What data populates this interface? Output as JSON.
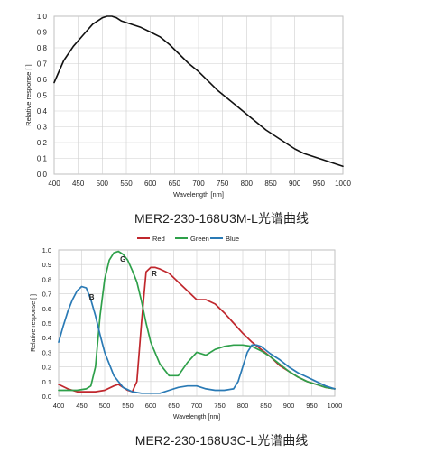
{
  "chart_data": [
    {
      "type": "line",
      "title": "MER2-230-168U3M-L光谱曲线",
      "xlabel": "Wavelength [nm]",
      "ylabel": "Relative response [ ]",
      "xlim": [
        400,
        1000
      ],
      "ylim": [
        0,
        1
      ],
      "xticks": [
        400,
        450,
        500,
        550,
        600,
        650,
        700,
        750,
        800,
        850,
        900,
        950,
        1000
      ],
      "yticks": [
        0,
        0.1,
        0.2,
        0.3,
        0.4,
        0.5,
        0.6,
        0.7,
        0.8,
        0.9,
        1.0
      ],
      "grid": true,
      "series": [
        {
          "name": "",
          "color": "#111111",
          "x": [
            400,
            420,
            440,
            460,
            480,
            500,
            510,
            520,
            530,
            540,
            550,
            560,
            580,
            600,
            620,
            640,
            660,
            680,
            700,
            720,
            740,
            760,
            780,
            800,
            820,
            840,
            860,
            880,
            900,
            920,
            940,
            960,
            980,
            1000
          ],
          "y": [
            0.58,
            0.72,
            0.81,
            0.88,
            0.95,
            0.99,
            1.0,
            1.0,
            0.99,
            0.97,
            0.96,
            0.95,
            0.93,
            0.9,
            0.87,
            0.82,
            0.76,
            0.7,
            0.65,
            0.59,
            0.53,
            0.48,
            0.43,
            0.38,
            0.33,
            0.28,
            0.24,
            0.2,
            0.16,
            0.13,
            0.11,
            0.09,
            0.07,
            0.05
          ]
        }
      ]
    },
    {
      "type": "line",
      "title": "MER2-230-168U3C-L光谱曲线",
      "xlabel": "Wavelength [nm]",
      "ylabel": "Relative response [ ]",
      "xlim": [
        400,
        1000
      ],
      "ylim": [
        0,
        1
      ],
      "xticks": [
        400,
        450,
        500,
        550,
        600,
        650,
        700,
        750,
        800,
        850,
        900,
        950,
        1000
      ],
      "yticks": [
        0,
        0.1,
        0.2,
        0.3,
        0.4,
        0.5,
        0.6,
        0.7,
        0.8,
        0.9,
        1.0
      ],
      "grid": true,
      "legend": "top",
      "series": [
        {
          "name": "Red",
          "label": "R",
          "color": "#c0272d",
          "x": [
            400,
            420,
            440,
            460,
            480,
            500,
            520,
            530,
            540,
            550,
            560,
            570,
            580,
            590,
            600,
            610,
            620,
            640,
            660,
            680,
            700,
            720,
            740,
            760,
            780,
            800,
            820,
            840,
            860,
            880,
            900,
            920,
            940,
            960,
            980,
            1000
          ],
          "y": [
            0.08,
            0.05,
            0.03,
            0.03,
            0.03,
            0.04,
            0.07,
            0.08,
            0.06,
            0.04,
            0.03,
            0.1,
            0.5,
            0.85,
            0.88,
            0.88,
            0.87,
            0.84,
            0.78,
            0.72,
            0.66,
            0.66,
            0.63,
            0.57,
            0.5,
            0.43,
            0.37,
            0.32,
            0.27,
            0.21,
            0.17,
            0.13,
            0.1,
            0.08,
            0.06,
            0.05
          ]
        },
        {
          "name": "Green",
          "label": "G",
          "color": "#2ea04a",
          "x": [
            400,
            420,
            440,
            460,
            470,
            480,
            490,
            500,
            510,
            520,
            530,
            540,
            550,
            560,
            570,
            580,
            590,
            600,
            620,
            640,
            660,
            680,
            700,
            720,
            740,
            760,
            780,
            800,
            820,
            840,
            860,
            880,
            900,
            920,
            940,
            960,
            980,
            1000
          ],
          "y": [
            0.04,
            0.04,
            0.04,
            0.05,
            0.07,
            0.2,
            0.55,
            0.8,
            0.93,
            0.98,
            0.99,
            0.97,
            0.93,
            0.86,
            0.78,
            0.65,
            0.5,
            0.37,
            0.22,
            0.14,
            0.14,
            0.23,
            0.3,
            0.28,
            0.32,
            0.34,
            0.35,
            0.35,
            0.34,
            0.31,
            0.27,
            0.22,
            0.17,
            0.13,
            0.1,
            0.08,
            0.06,
            0.05
          ]
        },
        {
          "name": "Blue",
          "label": "B",
          "color": "#2a7ab5",
          "x": [
            400,
            410,
            420,
            430,
            440,
            450,
            460,
            470,
            480,
            490,
            500,
            520,
            540,
            560,
            580,
            600,
            620,
            640,
            660,
            680,
            700,
            720,
            740,
            760,
            780,
            790,
            800,
            810,
            820,
            830,
            840,
            860,
            880,
            900,
            920,
            940,
            960,
            980,
            1000
          ],
          "y": [
            0.37,
            0.48,
            0.58,
            0.66,
            0.72,
            0.75,
            0.74,
            0.66,
            0.55,
            0.42,
            0.3,
            0.14,
            0.06,
            0.03,
            0.02,
            0.02,
            0.02,
            0.04,
            0.06,
            0.07,
            0.07,
            0.05,
            0.04,
            0.04,
            0.05,
            0.1,
            0.2,
            0.3,
            0.35,
            0.35,
            0.34,
            0.29,
            0.25,
            0.2,
            0.16,
            0.13,
            0.1,
            0.07,
            0.05
          ]
        }
      ]
    }
  ]
}
